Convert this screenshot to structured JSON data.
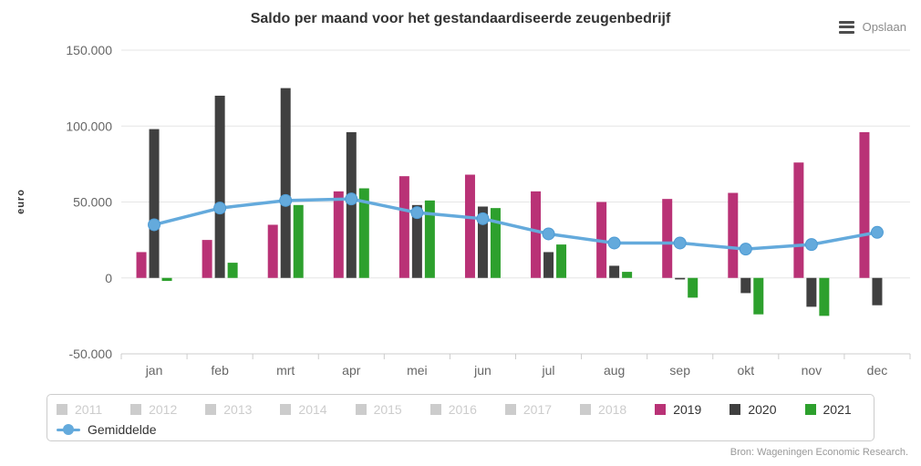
{
  "chart": {
    "title": "Saldo per maand voor het gestandaardiseerde zeugenbedrijf",
    "export_label": "Opslaan",
    "credits": "Bron: Wageningen Economic Research.",
    "y_axis_title": "euro"
  },
  "chart_data": {
    "type": "bar",
    "title": "Saldo per maand voor het gestandaardiseerde zeugenbedrijf",
    "xlabel": "",
    "ylabel": "euro",
    "ylim": [
      -50000,
      150000
    ],
    "grid": true,
    "legend_position": "bottom",
    "categories": [
      "jan",
      "feb",
      "mrt",
      "apr",
      "mei",
      "jun",
      "jul",
      "aug",
      "sep",
      "okt",
      "nov",
      "dec"
    ],
    "y_ticks": [
      {
        "value": 150000,
        "label": "150.000"
      },
      {
        "value": 100000,
        "label": "100.000"
      },
      {
        "value": 50000,
        "label": "50.000"
      },
      {
        "value": 0,
        "label": "0"
      },
      {
        "value": -50000,
        "label": "-50.000"
      }
    ],
    "series": [
      {
        "name": "2019",
        "type": "column",
        "color": "#b93276",
        "values": [
          17000,
          25000,
          35000,
          57000,
          67000,
          68000,
          57000,
          50000,
          52000,
          56000,
          76000,
          96000
        ]
      },
      {
        "name": "2020",
        "type": "column",
        "color": "#404040",
        "values": [
          98000,
          120000,
          125000,
          96000,
          48000,
          47000,
          17000,
          8000,
          -1000,
          -10000,
          -19000,
          -18000
        ]
      },
      {
        "name": "2021",
        "type": "column",
        "color": "#2da02d",
        "values": [
          -2000,
          10000,
          48000,
          59000,
          51000,
          46000,
          22000,
          4000,
          -13000,
          -24000,
          -25000,
          null
        ]
      },
      {
        "name": "Gemiddelde",
        "type": "line",
        "color": "#64aadc",
        "marker_stroke": "#4d9bd4",
        "values": [
          35000,
          46000,
          51000,
          52000,
          43000,
          39000,
          29000,
          23000,
          23000,
          19000,
          22000,
          30000
        ]
      }
    ],
    "hidden_series": [
      "2011",
      "2012",
      "2013",
      "2014",
      "2015",
      "2016",
      "2017",
      "2018"
    ]
  },
  "legend": {
    "rows": [
      {
        "items": [
          {
            "label": "2011",
            "disabled": true,
            "color": "#cccccc",
            "marker": "square"
          },
          {
            "label": "2012",
            "disabled": true,
            "color": "#cccccc",
            "marker": "square"
          },
          {
            "label": "2013",
            "disabled": true,
            "color": "#cccccc",
            "marker": "square"
          },
          {
            "label": "2014",
            "disabled": true,
            "color": "#cccccc",
            "marker": "square"
          },
          {
            "label": "2015",
            "disabled": true,
            "color": "#cccccc",
            "marker": "square"
          },
          {
            "label": "2016",
            "disabled": true,
            "color": "#cccccc",
            "marker": "square"
          },
          {
            "label": "2017",
            "disabled": true,
            "color": "#cccccc",
            "marker": "square"
          },
          {
            "label": "2018",
            "disabled": true,
            "color": "#cccccc",
            "marker": "square"
          },
          {
            "label": "2019",
            "disabled": false,
            "color": "#b93276",
            "marker": "square"
          },
          {
            "label": "2020",
            "disabled": false,
            "color": "#404040",
            "marker": "square"
          },
          {
            "label": "2021",
            "disabled": false,
            "color": "#2da02d",
            "marker": "square"
          }
        ]
      },
      {
        "items": [
          {
            "label": "Gemiddelde",
            "disabled": false,
            "color": "#64aadc",
            "marker": "line"
          }
        ]
      }
    ]
  },
  "style": {
    "grid_color": "#e6e6e6",
    "axis_line_color": "#cccccc",
    "tick_color": "#cccccc",
    "axis_label_color": "#666666",
    "axis_title_color": "#333333"
  }
}
